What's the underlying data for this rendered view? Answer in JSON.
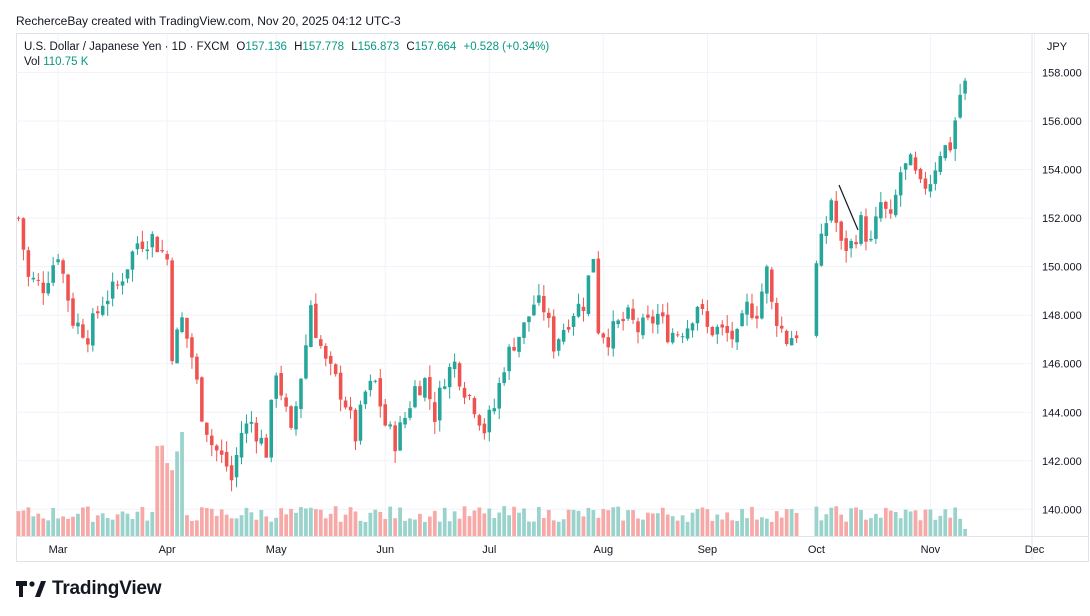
{
  "credit": "RecherceBay created with TradingView.com, Nov 20, 2025 04:12 UTC-3",
  "legend": {
    "symbol": "U.S. Dollar / Japanese Yen · 1D · FXCM",
    "open_label": "O",
    "open": "157.136",
    "high_label": "H",
    "high": "157.778",
    "low_label": "L",
    "low": "156.873",
    "close_label": "C",
    "close": "157.664",
    "change": "+0.528 (+0.34%)",
    "vol_label": "Vol",
    "vol": "110.75 K"
  },
  "currency": "JPY",
  "brand": "TradingView",
  "colors": {
    "up": "#26a69a",
    "down": "#ef5350",
    "vol_up": "#99d3cc",
    "vol_down": "#f7a9a7",
    "grid": "#f0f3fa"
  },
  "chart_data": {
    "type": "candlestick",
    "title": "U.S. Dollar / Japanese Yen, Daily",
    "y_ticks": [
      "158.000",
      "156.000",
      "154.000",
      "152.000",
      "150.000",
      "148.000",
      "146.000",
      "144.000",
      "142.000",
      "140.000"
    ],
    "ylim": [
      138.9,
      158.6
    ],
    "x_ticks": [
      {
        "label": "Mar",
        "index": 8
      },
      {
        "label": "Apr",
        "index": 30
      },
      {
        "label": "May",
        "index": 52
      },
      {
        "label": "Jun",
        "index": 74
      },
      {
        "label": "Jul",
        "index": 95
      },
      {
        "label": "Aug",
        "index": 118
      },
      {
        "label": "Sep",
        "index": 139
      },
      {
        "label": "Oct",
        "index": 161
      },
      {
        "label": "Nov",
        "index": 184
      },
      {
        "label": "Dec",
        "index": 205
      }
    ],
    "slots": 205,
    "anchors": [
      [
        0,
        152.0
      ],
      [
        2,
        149.5
      ],
      [
        5,
        149.2
      ],
      [
        8,
        150.6
      ],
      [
        11,
        147.8
      ],
      [
        14,
        147.2
      ],
      [
        17,
        148.6
      ],
      [
        20,
        149.2
      ],
      [
        24,
        151.0
      ],
      [
        27,
        151.2
      ],
      [
        30,
        150.3
      ],
      [
        31,
        146.5
      ],
      [
        33,
        147.8
      ],
      [
        35,
        146.3
      ],
      [
        37,
        144.0
      ],
      [
        39,
        142.7
      ],
      [
        42,
        141.8
      ],
      [
        43,
        141.2
      ],
      [
        45,
        143.2
      ],
      [
        47,
        143.6
      ],
      [
        50,
        142.4
      ],
      [
        52,
        145.8
      ],
      [
        55,
        143.0
      ],
      [
        58,
        146.8
      ],
      [
        59,
        148.5
      ],
      [
        60,
        147.4
      ],
      [
        62,
        146.0
      ],
      [
        64,
        145.3
      ],
      [
        66,
        144.4
      ],
      [
        68,
        143.0
      ],
      [
        70,
        144.8
      ],
      [
        72,
        145.2
      ],
      [
        74,
        143.5
      ],
      [
        76,
        142.8
      ],
      [
        78,
        143.8
      ],
      [
        80,
        145.0
      ],
      [
        82,
        145.3
      ],
      [
        84,
        143.9
      ],
      [
        86,
        145.5
      ],
      [
        88,
        146.0
      ],
      [
        90,
        145.0
      ],
      [
        92,
        144.3
      ],
      [
        94,
        143.3
      ],
      [
        96,
        144.2
      ],
      [
        98,
        146.0
      ],
      [
        100,
        146.9
      ],
      [
        102,
        147.5
      ],
      [
        104,
        148.5
      ],
      [
        106,
        148.3
      ],
      [
        108,
        146.8
      ],
      [
        110,
        147.5
      ],
      [
        112,
        148.2
      ],
      [
        114,
        148.5
      ],
      [
        116,
        150.5
      ],
      [
        117,
        147.5
      ],
      [
        119,
        147.1
      ],
      [
        121,
        147.6
      ],
      [
        123,
        147.9
      ],
      [
        125,
        147.4
      ],
      [
        127,
        147.6
      ],
      [
        129,
        148.0
      ],
      [
        131,
        147.3
      ],
      [
        133,
        147.3
      ],
      [
        135,
        147.6
      ],
      [
        137,
        148.5
      ],
      [
        139,
        147.4
      ],
      [
        141,
        147.4
      ],
      [
        143,
        147.2
      ],
      [
        145,
        147.0
      ],
      [
        147,
        148.3
      ],
      [
        149,
        148.2
      ],
      [
        151,
        149.8
      ],
      [
        152,
        148.4
      ],
      [
        154,
        147.4
      ],
      [
        155,
        147.0
      ],
      [
        157,
        147.3
      ],
      [
        161,
        150.0
      ],
      [
        164,
        152.8
      ],
      [
        166,
        150.8
      ],
      [
        168,
        150.9
      ],
      [
        170,
        151.8
      ],
      [
        172,
        150.9
      ],
      [
        174,
        152.6
      ],
      [
        176,
        151.8
      ],
      [
        178,
        153.9
      ],
      [
        180,
        154.2
      ],
      [
        182,
        153.2
      ],
      [
        184,
        153.6
      ],
      [
        186,
        154.8
      ],
      [
        188,
        155.0
      ],
      [
        190,
        157.1
      ],
      [
        191,
        157.66
      ]
    ],
    "volume_top_days": [
      28,
      29,
      30,
      31,
      32,
      33
    ]
  }
}
